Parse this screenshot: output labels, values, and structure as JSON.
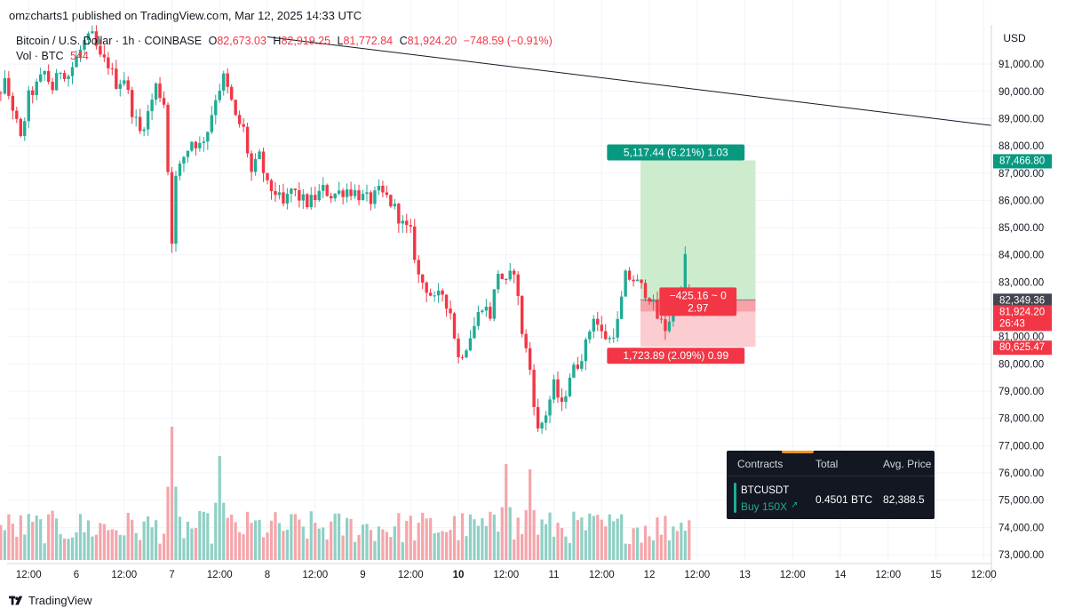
{
  "publish_line": "omzcharts1 published on TradingView.com, Mar 12, 2025 14:33 UTC",
  "legend": {
    "symbol": "Bitcoin / U.S. Dollar · 1h · COINBASE",
    "open_label": "O",
    "open": "82,673.03",
    "high_label": "H",
    "high": "82,919.25",
    "low_label": "L",
    "low": "81,772.84",
    "close_label": "C",
    "close": "81,924.20",
    "change": "−748.59 (−0.91%)",
    "vol_label": "Vol · BTC",
    "vol": "544"
  },
  "footer": {
    "brand": "TradingView"
  },
  "colors": {
    "up": "#22ab94",
    "down": "#f23645",
    "up_volume": "#8fd0c5",
    "down_volume": "#f5a5ab",
    "profit_zone": "#cdeccd",
    "loss_zone": "#fbcdd0",
    "profit_label": "#089981",
    "loss_label": "#f23645",
    "grid": "#f0f3fa",
    "trendline": "#131722"
  },
  "axis_currency": "USD",
  "position_panel": {
    "headers": [
      "Contracts",
      "Total",
      "Avg. Price"
    ],
    "symbol": "BTCUSDT",
    "side": "Buy 150X",
    "total": "0.4501 BTC",
    "avg_price": "82,388.5"
  },
  "chart_data": {
    "type": "candlestick",
    "symbol": "Bitcoin / U.S. Dollar",
    "interval": "1h",
    "exchange": "COINBASE",
    "currency": "USD",
    "ylim": [
      72900,
      92000
    ],
    "y_ticks": [
      "73,000.00",
      "74,000.00",
      "75,000.00",
      "76,000.00",
      "77,000.00",
      "78,000.00",
      "79,000.00",
      "80,000.00",
      "81,000.00",
      "82,000.00",
      "83,000.00",
      "84,000.00",
      "85,000.00",
      "86,000.00",
      "87,000.00",
      "88,000.00",
      "89,000.00",
      "90,000.00",
      "91,000.00"
    ],
    "y_tick_values": [
      73000,
      74000,
      75000,
      76000,
      77000,
      78000,
      79000,
      80000,
      81000,
      82000,
      83000,
      84000,
      85000,
      86000,
      87000,
      88000,
      89000,
      90000,
      91000
    ],
    "x_ticks": [
      {
        "label": "12:00",
        "t": -12,
        "bold": false
      },
      {
        "label": "6",
        "t": 0,
        "bold": false
      },
      {
        "label": "12:00",
        "t": 12,
        "bold": false
      },
      {
        "label": "7",
        "t": 24,
        "bold": false
      },
      {
        "label": "12:00",
        "t": 36,
        "bold": false
      },
      {
        "label": "8",
        "t": 48,
        "bold": false
      },
      {
        "label": "12:00",
        "t": 60,
        "bold": false
      },
      {
        "label": "9",
        "t": 72,
        "bold": false
      },
      {
        "label": "12:00",
        "t": 84,
        "bold": false
      },
      {
        "label": "10",
        "t": 96,
        "bold": true
      },
      {
        "label": "12:00",
        "t": 108,
        "bold": false
      },
      {
        "label": "11",
        "t": 120,
        "bold": false
      },
      {
        "label": "12:00",
        "t": 132,
        "bold": false
      },
      {
        "label": "12",
        "t": 144,
        "bold": false
      },
      {
        "label": "12:00",
        "t": 156,
        "bold": false
      },
      {
        "label": "13",
        "t": 168,
        "bold": false
      },
      {
        "label": "12:00",
        "t": 180,
        "bold": false
      },
      {
        "label": "14",
        "t": 192,
        "bold": false
      },
      {
        "label": "12:00",
        "t": 204,
        "bold": false
      },
      {
        "label": "15",
        "t": 216,
        "bold": false
      },
      {
        "label": "12:00",
        "t": 228,
        "bold": false
      }
    ],
    "x_unit": "hours since Mar 6 00:00 UTC",
    "close_path": [
      [
        -24,
        87300
      ],
      [
        -22,
        88300
      ],
      [
        -20,
        89800
      ],
      [
        -18,
        90300
      ],
      [
        -16,
        89400
      ],
      [
        -14,
        88200
      ],
      [
        -12,
        89800
      ],
      [
        -10,
        90200
      ],
      [
        -8,
        90700
      ],
      [
        -6,
        90100
      ],
      [
        -4,
        90800
      ],
      [
        -2,
        90600
      ],
      [
        0,
        91200
      ],
      [
        2,
        91800
      ],
      [
        4,
        92000
      ],
      [
        6,
        91200
      ],
      [
        8,
        91000
      ],
      [
        10,
        90300
      ],
      [
        12,
        90500
      ],
      [
        14,
        89300
      ],
      [
        16,
        88500
      ],
      [
        18,
        89200
      ],
      [
        20,
        90200
      ],
      [
        22,
        89600
      ],
      [
        24,
        84600
      ],
      [
        25,
        86800
      ],
      [
        27,
        87600
      ],
      [
        29,
        88200
      ],
      [
        31,
        88000
      ],
      [
        33,
        88600
      ],
      [
        35,
        89800
      ],
      [
        37,
        90500
      ],
      [
        39,
        89600
      ],
      [
        40,
        89000
      ],
      [
        42,
        88600
      ],
      [
        44,
        87000
      ],
      [
        46,
        87600
      ],
      [
        48,
        86500
      ],
      [
        50,
        86300
      ],
      [
        52,
        85800
      ],
      [
        54,
        86400
      ],
      [
        56,
        86100
      ],
      [
        58,
        85900
      ],
      [
        60,
        86100
      ],
      [
        62,
        86400
      ],
      [
        64,
        86200
      ],
      [
        66,
        86300
      ],
      [
        68,
        86400
      ],
      [
        70,
        86300
      ],
      [
        72,
        86100
      ],
      [
        74,
        86000
      ],
      [
        76,
        86300
      ],
      [
        78,
        86100
      ],
      [
        80,
        85700
      ],
      [
        82,
        85100
      ],
      [
        84,
        84800
      ],
      [
        86,
        83200
      ],
      [
        88,
        82800
      ],
      [
        90,
        82300
      ],
      [
        92,
        82600
      ],
      [
        94,
        81900
      ],
      [
        96,
        80200
      ],
      [
        98,
        80700
      ],
      [
        100,
        81400
      ],
      [
        102,
        82200
      ],
      [
        104,
        81800
      ],
      [
        106,
        83400
      ],
      [
        108,
        82900
      ],
      [
        110,
        83500
      ],
      [
        112,
        81200
      ],
      [
        114,
        79800
      ],
      [
        116,
        77500
      ],
      [
        118,
        78200
      ],
      [
        120,
        79200
      ],
      [
        122,
        78400
      ],
      [
        124,
        79600
      ],
      [
        126,
        80000
      ],
      [
        128,
        80700
      ],
      [
        130,
        81800
      ],
      [
        132,
        81100
      ],
      [
        134,
        80900
      ],
      [
        136,
        81500
      ],
      [
        138,
        83200
      ],
      [
        140,
        83100
      ],
      [
        142,
        82800
      ],
      [
        144,
        82500
      ],
      [
        146,
        81700
      ],
      [
        148,
        81300
      ],
      [
        150,
        82000
      ],
      [
        152,
        82600
      ],
      [
        153,
        84000
      ],
      [
        154,
        81900
      ]
    ],
    "open_price": 82673.03,
    "high_price": 82919.25,
    "low_price": 81772.84,
    "close_price": 81924.2,
    "last_price_label": "81,924.20",
    "countdown": "26:43",
    "volume_peak_bars": [
      [
        24,
        1.0
      ],
      [
        36,
        0.78
      ],
      [
        108,
        0.72
      ],
      [
        114,
        0.68
      ],
      [
        152,
        0.28
      ]
    ],
    "long_position": {
      "t_start": 144,
      "t_end": 168,
      "entry_price": 82349.36,
      "entry_label": "82,349.36",
      "target_price": 87466.8,
      "target_label": "87,466.80",
      "stop_price": 80625.47,
      "stop_label": "80,625.47",
      "target_text": "5,117.44 (6.21%) 1.03",
      "stop_text": "1,723.89 (2.09%) 0.99",
      "pnl_text_1": "−425.16 ~ 0",
      "pnl_text_2": "2.97"
    },
    "trendline": [
      [
        48,
        92000
      ],
      [
        206,
        88750
      ]
    ]
  }
}
